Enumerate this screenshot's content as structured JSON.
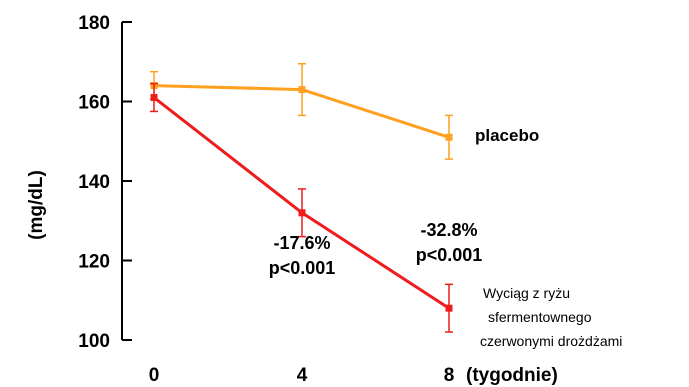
{
  "chart_data": {
    "type": "line",
    "x": [
      0,
      4,
      8
    ],
    "x_tick_labels": [
      "0",
      "4",
      "8"
    ],
    "xlabel": "(tygodnie)",
    "ylabel": "(mg/dL)",
    "ylim": [
      100,
      180
    ],
    "y_ticks": [
      100,
      120,
      140,
      160,
      180
    ],
    "grid": false,
    "series": [
      {
        "name": "placebo",
        "color": "#ffa020",
        "values": [
          164,
          163,
          151
        ],
        "errors": [
          3.5,
          6.5,
          5.5
        ]
      },
      {
        "name_lines": [
          "Wyciąg z ryżu",
          "sfermentownego",
          "czerwonymi drożdżami"
        ],
        "color": "#ee1c1c",
        "values": [
          161,
          132,
          108
        ],
        "errors": [
          3.5,
          6,
          6
        ]
      }
    ],
    "annotations": [
      {
        "lines": [
          "-17.6%",
          "p<0.001"
        ],
        "at_x": 4
      },
      {
        "lines": [
          "-32.8%",
          "p<0.001"
        ],
        "at_x": 8
      }
    ]
  }
}
